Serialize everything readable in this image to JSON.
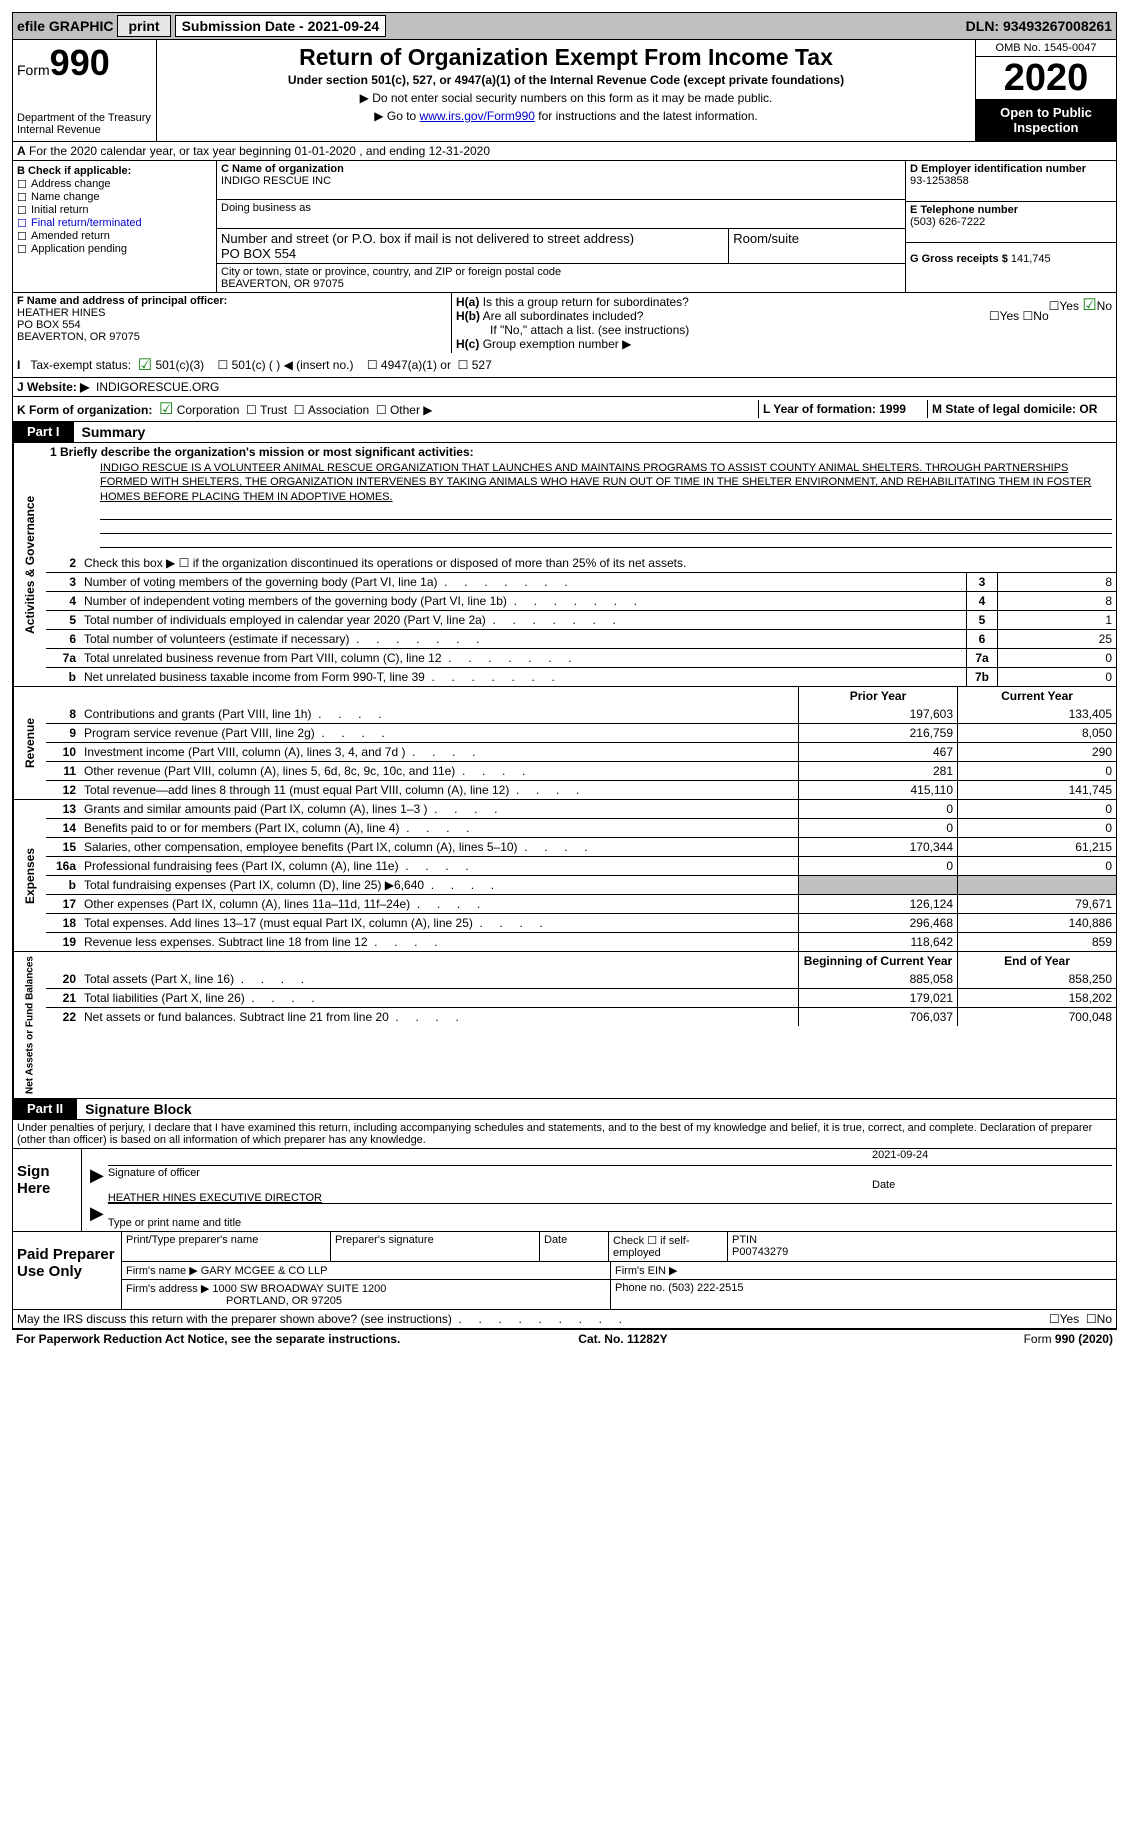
{
  "topbar": {
    "efile": "efile GRAPHIC",
    "print": "print",
    "submission": "Submission Date - 2021-09-24",
    "dln": "DLN: 93493267008261"
  },
  "header": {
    "form": "Form",
    "num": "990",
    "dept1": "Department of the Treasury",
    "dept2": "Internal Revenue",
    "title": "Return of Organization Exempt From Income Tax",
    "sub": "Under section 501(c), 527, or 4947(a)(1) of the Internal Revenue Code (except private foundations)",
    "note1": "▶ Do not enter social security numbers on this form as it may be made public.",
    "note2_pre": "▶ Go to ",
    "note2_link": "www.irs.gov/Form990",
    "note2_post": " for instructions and the latest information.",
    "omb": "OMB No. 1545-0047",
    "year": "2020",
    "open": "Open to Public Inspection"
  },
  "lineA": "For the 2020 calendar year, or tax year beginning 01-01-2020   , and ending 12-31-2020",
  "boxB": {
    "title": "B Check if applicable:",
    "opts": [
      "Address change",
      "Name change",
      "Initial return",
      "Final return/terminated",
      "Amended return",
      "Application pending"
    ]
  },
  "boxC": {
    "label_name": "C Name of organization",
    "name": "INDIGO RESCUE INC",
    "dba": "Doing business as",
    "street_label": "Number and street (or P.O. box if mail is not delivered to street address)",
    "room": "Room/suite",
    "street": "PO BOX 554",
    "city_label": "City or town, state or province, country, and ZIP or foreign postal code",
    "city": "BEAVERTON, OR  97075"
  },
  "boxD": {
    "label": "D Employer identification number",
    "val": "93-1253858"
  },
  "boxE": {
    "label": "E Telephone number",
    "val": "(503) 626-7222"
  },
  "boxG": {
    "label": "G Gross receipts $",
    "val": "141,745"
  },
  "boxF": {
    "label": "F Name and address of principal officer:",
    "l1": "HEATHER HINES",
    "l2": "PO BOX 554",
    "l3": "BEAVERTON, OR  97075"
  },
  "boxH": {
    "ha": "Is this a group return for subordinates?",
    "hb": "Are all subordinates included?",
    "hnote": "If \"No,\" attach a list. (see instructions)",
    "hc": "Group exemption number ▶",
    "yes": "Yes",
    "no": "No"
  },
  "rowI": {
    "label": "Tax-exempt status:",
    "o1": "501(c)(3)",
    "o2": "501(c) (  ) ◀ (insert no.)",
    "o3": "4947(a)(1) or",
    "o4": "527"
  },
  "rowJ": {
    "label": "J    Website: ▶",
    "val": "INDIGORESCUE.ORG"
  },
  "rowK": {
    "label": "K Form of organization:",
    "o1": "Corporation",
    "o2": "Trust",
    "o3": "Association",
    "o4": "Other ▶"
  },
  "rowL": {
    "label": "L Year of formation: 1999"
  },
  "rowM": {
    "label": "M State of legal domicile: OR"
  },
  "part1": {
    "lbl": "Part I",
    "title": "Summary"
  },
  "vtabs": {
    "gov": "Activities & Governance",
    "rev": "Revenue",
    "exp": "Expenses",
    "net": "Net Assets or Fund Balances"
  },
  "briefly_lbl": "1   Briefly describe the organization's mission or most significant activities:",
  "mission": "INDIGO RESCUE IS A VOLUNTEER ANIMAL RESCUE ORGANIZATION THAT LAUNCHES AND MAINTAINS PROGRAMS TO ASSIST COUNTY ANIMAL SHELTERS. THROUGH PARTNERSHIPS FORMED WITH SHELTERS, THE ORGANIZATION INTERVENES BY TAKING ANIMALS WHO HAVE RUN OUT OF TIME IN THE SHELTER ENVIRONMENT, AND REHABILITATING THEM IN FOSTER HOMES BEFORE PLACING THEM IN ADOPTIVE HOMES.",
  "gov_lines": [
    {
      "n": "2",
      "t": "Check this box ▶ ☐  if the organization discontinued its operations or disposed of more than 25% of its net assets.",
      "b": "",
      "v": ""
    },
    {
      "n": "3",
      "t": "Number of voting members of the governing body (Part VI, line 1a)",
      "b": "3",
      "v": "8"
    },
    {
      "n": "4",
      "t": "Number of independent voting members of the governing body (Part VI, line 1b)",
      "b": "4",
      "v": "8"
    },
    {
      "n": "5",
      "t": "Total number of individuals employed in calendar year 2020 (Part V, line 2a)",
      "b": "5",
      "v": "1"
    },
    {
      "n": "6",
      "t": "Total number of volunteers (estimate if necessary)",
      "b": "6",
      "v": "25"
    },
    {
      "n": "7a",
      "t": "Total unrelated business revenue from Part VIII, column (C), line 12",
      "b": "7a",
      "v": "0"
    },
    {
      "n": "b",
      "t": "Net unrelated business taxable income from Form 990-T, line 39",
      "b": "7b",
      "v": "0"
    }
  ],
  "cols": {
    "prior": "Prior Year",
    "current": "Current Year",
    "boy": "Beginning of Current Year",
    "eoy": "End of Year"
  },
  "rev": [
    {
      "n": "8",
      "t": "Contributions and grants (Part VIII, line 1h)",
      "p": "197,603",
      "c": "133,405"
    },
    {
      "n": "9",
      "t": "Program service revenue (Part VIII, line 2g)",
      "p": "216,759",
      "c": "8,050"
    },
    {
      "n": "10",
      "t": "Investment income (Part VIII, column (A), lines 3, 4, and 7d )",
      "p": "467",
      "c": "290"
    },
    {
      "n": "11",
      "t": "Other revenue (Part VIII, column (A), lines 5, 6d, 8c, 9c, 10c, and 11e)",
      "p": "281",
      "c": "0"
    },
    {
      "n": "12",
      "t": "Total revenue—add lines 8 through 11 (must equal Part VIII, column (A), line 12)",
      "p": "415,110",
      "c": "141,745"
    }
  ],
  "exp": [
    {
      "n": "13",
      "t": "Grants and similar amounts paid (Part IX, column (A), lines 1–3 )",
      "p": "0",
      "c": "0"
    },
    {
      "n": "14",
      "t": "Benefits paid to or for members (Part IX, column (A), line 4)",
      "p": "0",
      "c": "0"
    },
    {
      "n": "15",
      "t": "Salaries, other compensation, employee benefits (Part IX, column (A), lines 5–10)",
      "p": "170,344",
      "c": "61,215"
    },
    {
      "n": "16a",
      "t": "Professional fundraising fees (Part IX, column (A), line 11e)",
      "p": "0",
      "c": "0"
    },
    {
      "n": "b",
      "t": "Total fundraising expenses (Part IX, column (D), line 25) ▶6,640",
      "p": "",
      "c": "",
      "shade": true
    },
    {
      "n": "17",
      "t": "Other expenses (Part IX, column (A), lines 11a–11d, 11f–24e)",
      "p": "126,124",
      "c": "79,671"
    },
    {
      "n": "18",
      "t": "Total expenses. Add lines 13–17 (must equal Part IX, column (A), line 25)",
      "p": "296,468",
      "c": "140,886"
    },
    {
      "n": "19",
      "t": "Revenue less expenses. Subtract line 18 from line 12",
      "p": "118,642",
      "c": "859"
    }
  ],
  "net": [
    {
      "n": "20",
      "t": "Total assets (Part X, line 16)",
      "p": "885,058",
      "c": "858,250"
    },
    {
      "n": "21",
      "t": "Total liabilities (Part X, line 26)",
      "p": "179,021",
      "c": "158,202"
    },
    {
      "n": "22",
      "t": "Net assets or fund balances. Subtract line 21 from line 20",
      "p": "706,037",
      "c": "700,048"
    }
  ],
  "part2": {
    "lbl": "Part II",
    "title": "Signature Block"
  },
  "perjury": "Under penalties of perjury, I declare that I have examined this return, including accompanying schedules and statements, and to the best of my knowledge and belief, it is true, correct, and complete. Declaration of preparer (other than officer) is based on all information of which preparer has any knowledge.",
  "sign": {
    "here": "Sign Here",
    "sig_officer": "Signature of officer",
    "date_label": "Date",
    "date_val": "2021-09-24",
    "name": "HEATHER HINES  EXECUTIVE DIRECTOR",
    "name_lbl": "Type or print name and title"
  },
  "prep": {
    "lbl": "Paid Preparer Use Only",
    "h1": "Print/Type preparer's name",
    "h2": "Preparer's signature",
    "h3": "Date",
    "h4_a": "Check ☐ if self-employed",
    "h5": "PTIN",
    "ptin": "P00743279",
    "firm_lbl": "Firm's name    ▶",
    "firm": "GARY MCGEE & CO LLP",
    "ein_lbl": "Firm's EIN ▶",
    "addr_lbl": "Firm's address ▶",
    "addr1": "1000 SW BROADWAY SUITE 1200",
    "addr2": "PORTLAND, OR  97205",
    "phone_lbl": "Phone no.",
    "phone": "(503) 222-2515"
  },
  "irs_q": "May the IRS discuss this return with the preparer shown above? (see instructions)",
  "footer": {
    "l": "For Paperwork Reduction Act Notice, see the separate instructions.",
    "m": "Cat. No. 11282Y",
    "r": "Form 990 (2020)"
  }
}
